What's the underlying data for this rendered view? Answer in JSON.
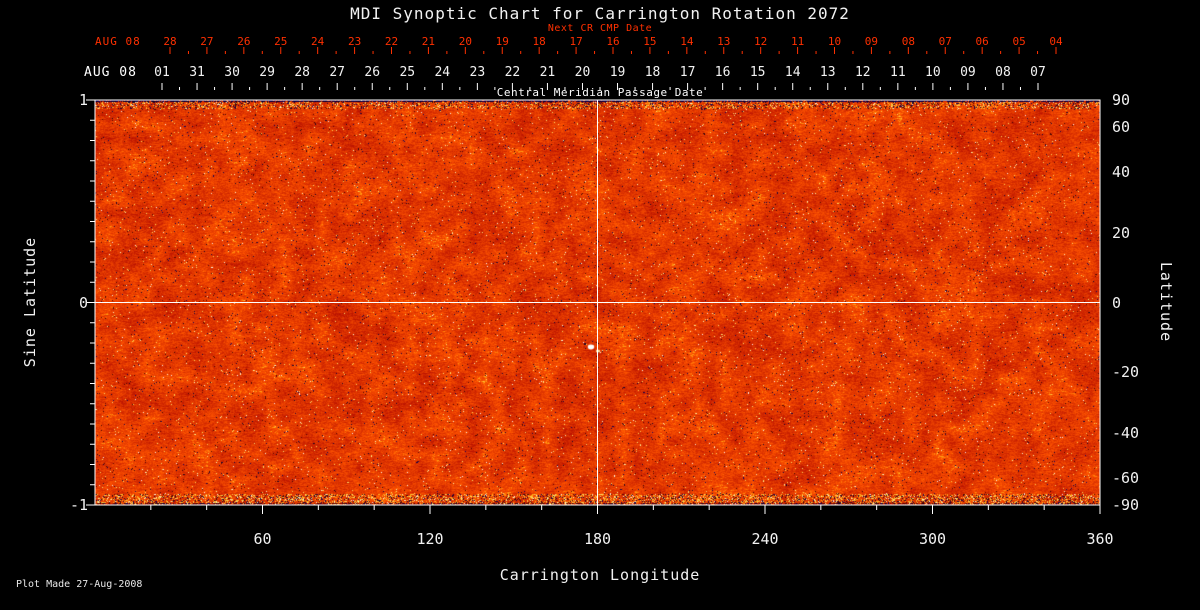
{
  "title": "MDI Synoptic Chart for Carrington Rotation 2072",
  "footer": "Plot Made 27-Aug-2008",
  "chart_data": {
    "type": "heatmap",
    "title": "MDI Synoptic Chart for Carrington Rotation 2072",
    "xlabel": "Carrington Longitude",
    "ylabel_left": "Sine Latitude",
    "ylabel_right": "Latitude",
    "x_range": [
      0,
      360
    ],
    "x_ticks": [
      60,
      120,
      180,
      240,
      300,
      360
    ],
    "left_y_range": [
      -1,
      1
    ],
    "left_y_ticks": [
      1,
      0,
      -1
    ],
    "right_y_ticks": [
      90,
      60,
      40,
      20,
      0,
      -20,
      -40,
      -60,
      -90
    ],
    "y_scale": "sine-latitude",
    "top_axis_red": {
      "label": "Next CR CMP Date",
      "prefix": "AUG 08",
      "ticks": [
        "28",
        "27",
        "26",
        "25",
        "24",
        "23",
        "22",
        "21",
        "20",
        "19",
        "18",
        "17",
        "16",
        "15",
        "14",
        "13",
        "12",
        "11",
        "10",
        "09",
        "08",
        "07",
        "06",
        "05",
        "04"
      ]
    },
    "top_axis_white": {
      "label": "Central Meridian Passage Date",
      "prefix": "AUG 08",
      "ticks": [
        "01",
        "31",
        "30",
        "29",
        "28",
        "27",
        "26",
        "25",
        "24",
        "23",
        "22",
        "21",
        "20",
        "19",
        "18",
        "17",
        "16",
        "15",
        "14",
        "13",
        "12",
        "11",
        "10",
        "09",
        "08",
        "07"
      ]
    },
    "crosshair": {
      "longitude": 180,
      "sine_latitude": 0
    },
    "grid": false,
    "legend": "none",
    "colors": {
      "background": "#000000",
      "axis": "#ffffff",
      "red_axis": "#ff3000",
      "map_base": "#e04400",
      "map_bright": "#ffd24a",
      "map_dark": "#1a0430"
    }
  }
}
